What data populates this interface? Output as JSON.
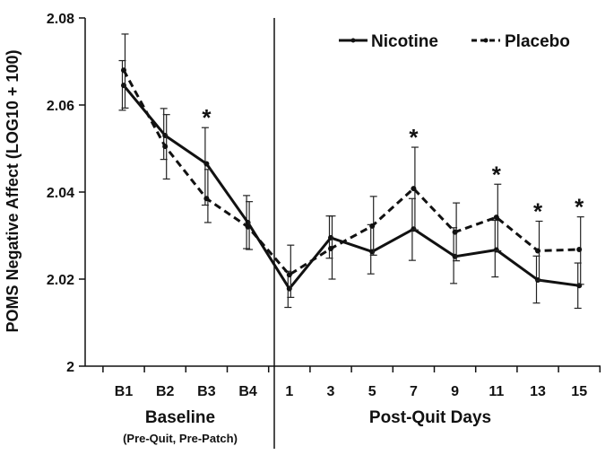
{
  "chart_data": {
    "type": "line",
    "ylabel": "POMS Negative Affect (LOG10 + 100)",
    "xlabel": "",
    "ylim": [
      2.0,
      2.08
    ],
    "yticks": [
      "2",
      "2.02",
      "2.04",
      "2.06",
      "2.08"
    ],
    "ytick_values": [
      2.0,
      2.02,
      2.04,
      2.06,
      2.08
    ],
    "categories": [
      "B1",
      "B2",
      "B3",
      "B4",
      "1",
      "3",
      "5",
      "7",
      "9",
      "11",
      "13",
      "15"
    ],
    "groups": [
      {
        "label": "Baseline",
        "sublabel": "(Pre-Quit, Pre-Patch)"
      },
      {
        "label": "Post-Quit Days",
        "sublabel": ""
      }
    ],
    "series": [
      {
        "name": "Nicotine",
        "style": "solid",
        "color": "#111111",
        "values": [
          2.0645,
          2.053,
          2.0465,
          2.033,
          2.0178,
          2.0295,
          2.0263,
          2.0315,
          2.0252,
          2.0267,
          2.0198,
          2.0185
        ],
        "err_low": [
          2.0588,
          2.0475,
          2.037,
          2.027,
          2.0135,
          2.0248,
          2.0212,
          2.0243,
          2.019,
          2.0205,
          2.0145,
          2.0133
        ],
        "err_high": [
          2.0702,
          2.0592,
          2.0548,
          2.0392,
          2.0218,
          2.0345,
          2.0325,
          2.0385,
          2.0318,
          2.0335,
          2.0253,
          2.0237
        ]
      },
      {
        "name": "Placebo",
        "style": "dashed",
        "color": "#111111",
        "values": [
          2.068,
          2.0505,
          2.0385,
          2.032,
          2.021,
          2.027,
          2.0322,
          2.0408,
          2.0308,
          2.0342,
          2.0265,
          2.0268
        ],
        "err_low": [
          2.0593,
          2.043,
          2.033,
          2.0268,
          2.0158,
          2.02,
          2.0255,
          2.0313,
          2.0242,
          2.0265,
          2.0197,
          2.0188
        ],
        "err_high": [
          2.0763,
          2.0578,
          2.0452,
          2.0378,
          2.0278,
          2.0345,
          2.039,
          2.0503,
          2.0375,
          2.0418,
          2.0333,
          2.0343
        ]
      }
    ],
    "significance_marker": "*",
    "significant_points": [
      "B3",
      "7",
      "11",
      "13",
      "15"
    ],
    "divider_after": "B4",
    "legend_position": "top-right",
    "grid": false
  }
}
